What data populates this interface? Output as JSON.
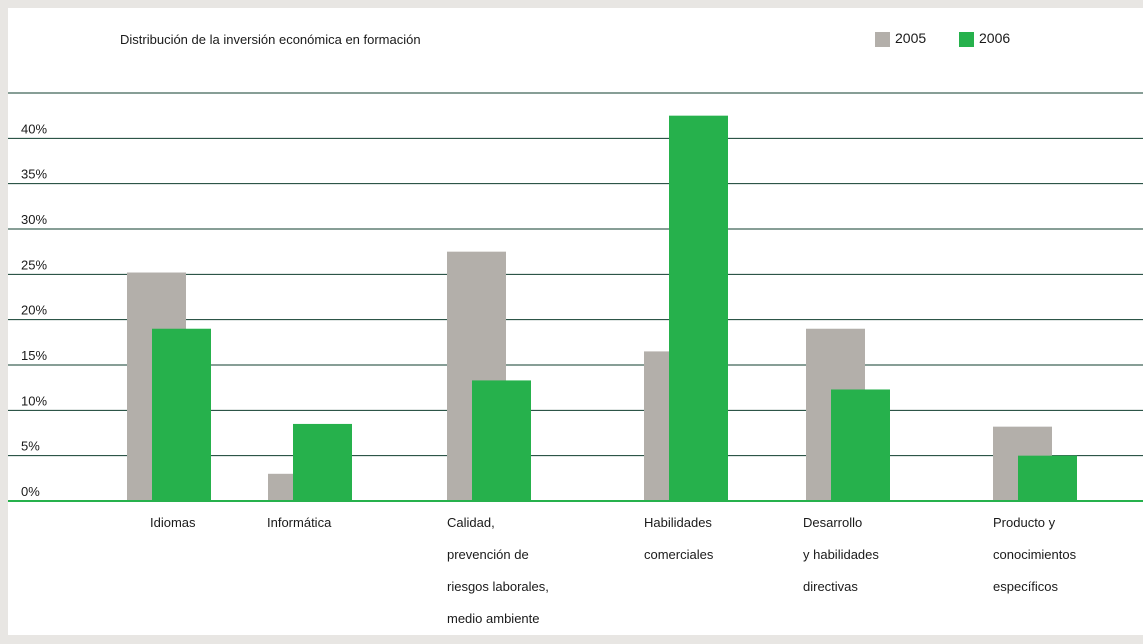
{
  "chart_data": {
    "type": "bar",
    "title": "Distribución de la inversión económica en formación",
    "categories": [
      [
        "Idiomas"
      ],
      [
        "Informática"
      ],
      [
        "Calidad,",
        "prevención de",
        "riesgos laborales,",
        "medio ambiente"
      ],
      [
        "Habilidades",
        "comerciales"
      ],
      [
        "Desarrollo",
        "y habilidades",
        "directivas"
      ],
      [
        "Producto y",
        "conocimientos",
        "específicos"
      ]
    ],
    "series": [
      {
        "name": "2005",
        "color": "#b3afaa",
        "values": [
          25.2,
          3.0,
          27.5,
          16.5,
          19.0,
          8.2
        ]
      },
      {
        "name": "2006",
        "color": "#26b14c",
        "values": [
          19.0,
          8.5,
          13.3,
          42.5,
          12.3,
          5.0
        ]
      }
    ],
    "ylim": [
      0,
      45
    ],
    "yticks": [
      0,
      5,
      10,
      15,
      20,
      25,
      30,
      35,
      40
    ],
    "ytick_labels": [
      "0%",
      "5%",
      "10%",
      "15%",
      "20%",
      "25%",
      "30%",
      "35%",
      "40%"
    ],
    "grid": true,
    "legend": "top-right",
    "gridline_color": "#0f3d2e",
    "baseline_color": "#26b14c"
  }
}
